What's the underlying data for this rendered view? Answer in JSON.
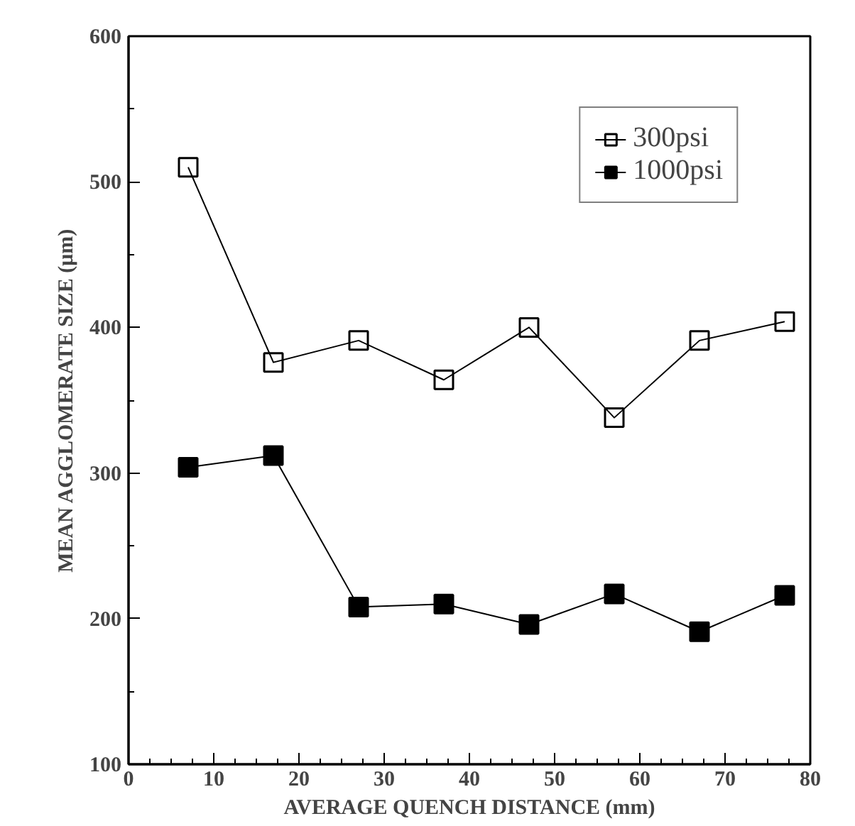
{
  "chart_data": {
    "type": "line",
    "xlabel": "AVERAGE QUENCH DISTANCE (mm)",
    "ylabel": "MEAN AGGLOMERATE SIZE (μm)",
    "x": [
      7,
      17,
      27,
      37,
      47,
      57,
      67,
      77
    ],
    "series": [
      {
        "name": "300psi",
        "color": "#000000",
        "marker": "square_open",
        "values": [
          510,
          376,
          391,
          364,
          400,
          338,
          391,
          404
        ]
      },
      {
        "name": "1000psi",
        "color": "#000000",
        "marker": "square",
        "values": [
          304,
          312,
          208,
          210,
          196,
          217,
          191,
          216
        ]
      }
    ],
    "xlim": [
      0,
      80
    ],
    "xticks": [
      0,
      10,
      20,
      30,
      40,
      50,
      60,
      70,
      80
    ],
    "ylim": [
      100,
      600
    ],
    "yticks": [
      100,
      200,
      300,
      400,
      500,
      600
    ],
    "grid": false,
    "legend": "top right",
    "line_style": "solid"
  }
}
